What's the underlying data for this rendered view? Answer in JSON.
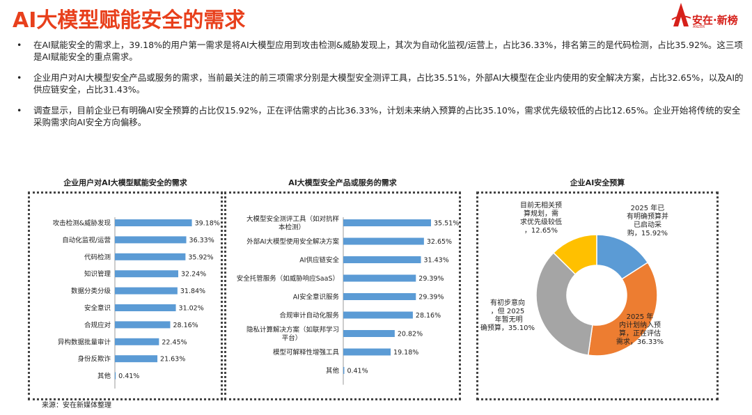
{
  "title": "AI大模型赋能安全的需求",
  "logo": {
    "brand": "安在·新榜",
    "sub": "ANZER"
  },
  "bullets": [
    {
      "marker": "•",
      "text": "在AI赋能安全的需求上，39.18%的用户第一需求是将AI大模型应用到攻击检测&威胁发现上，其次为自动化监视/运营上，占比36.33%，排名第三的是代码检测，占比35.92%。这三项是AI赋能安全的重点需求。"
    },
    {
      "marker": "•",
      "text": "企业用户对AI大模型安全产品或服务的需求，当前最关注的前三项需求分别是大模型安全测评工具，占比35.51%，外部AI大模型在企业内使用的安全解决方案，占比32.65%，以及AI的供应链安全，占比31.43%。"
    },
    {
      "marker": "•",
      "text": "调查显示，目前企业已有明确AI安全预算的占比仅15.92%，正在评估需求的占比36.33%，计划未来纳入预算的占比35.10%，需求优先级较低的占比12.65%。企业开始将传统的安全采购需求向AI安全方向偏移。"
    }
  ],
  "source": "来源：安在新媒体整理",
  "colors": {
    "bar": "#5b9bd5",
    "blue": "#5b9bd5",
    "orange": "#ed7d31",
    "gray": "#a5a5a5",
    "yellow": "#ffc000",
    "title": "#e8401c"
  },
  "chart_data": [
    {
      "type": "bar",
      "orientation": "horizontal",
      "title": "企业用户对AI大模型赋能安全的需求",
      "categories": [
        "攻击检测&威胁发现",
        "自动化监视/运营",
        "代码检测",
        "知识管理",
        "数据分类分级",
        "安全意识",
        "合规应对",
        "异构数据批量审计",
        "身份反欺诈",
        "其他"
      ],
      "values": [
        39.18,
        36.33,
        35.92,
        32.24,
        31.84,
        31.02,
        28.16,
        22.45,
        21.63,
        0.41
      ],
      "labels": [
        "39.18%",
        "36.33%",
        "35.92%",
        "32.24%",
        "31.84%",
        "31.02%",
        "28.16%",
        "22.45%",
        "21.63%",
        "0.41%"
      ],
      "xlim": [
        0,
        45
      ]
    },
    {
      "type": "bar",
      "orientation": "horizontal",
      "title": "AI大模型安全产品或服务的需求",
      "categories": [
        "大模型安全测评工具（如对抗样本检测）",
        "外部AI大模型使用安全解决方案",
        "AI供应链安全",
        "安全托管服务（如威胁响应SaaS）",
        "AI安全意识服务",
        "合规审计自动化服务",
        "隐私计算解决方案（如联邦学习平台）",
        "模型可解释性增强工具",
        "其他"
      ],
      "values": [
        35.51,
        32.65,
        31.43,
        29.39,
        29.39,
        28.16,
        20.82,
        19.18,
        0.41
      ],
      "labels": [
        "35.51%",
        "32.65%",
        "31.43%",
        "29.39%",
        "29.39%",
        "28.16%",
        "20.82%",
        "19.18%",
        "0.41%"
      ],
      "xlim": [
        0,
        35.51
      ]
    },
    {
      "type": "pie",
      "donut": true,
      "title": "企业AI安全预算",
      "series": [
        {
          "name": "2025 年已有明确预算并已启动采购",
          "value": 15.92,
          "label": "2025 年已有明确预算并已启动采购，15.92%"
        },
        {
          "name": "2025 年内计划纳入预算，正在评估需求",
          "value": 36.33,
          "label": "2025 年内计划纳入预算，正在评估需求，36.33%"
        },
        {
          "name": "有初步意向，但 2025 年暂无明确预算",
          "value": 35.1,
          "label": "有初步意向，但 2025 年暂无明确预算，35.10%"
        },
        {
          "name": "目前无相关预算规划，需求优先级较低",
          "value": 12.65,
          "label": "目前无相关预算规划，需求优先级较低，12.65%"
        }
      ]
    }
  ]
}
